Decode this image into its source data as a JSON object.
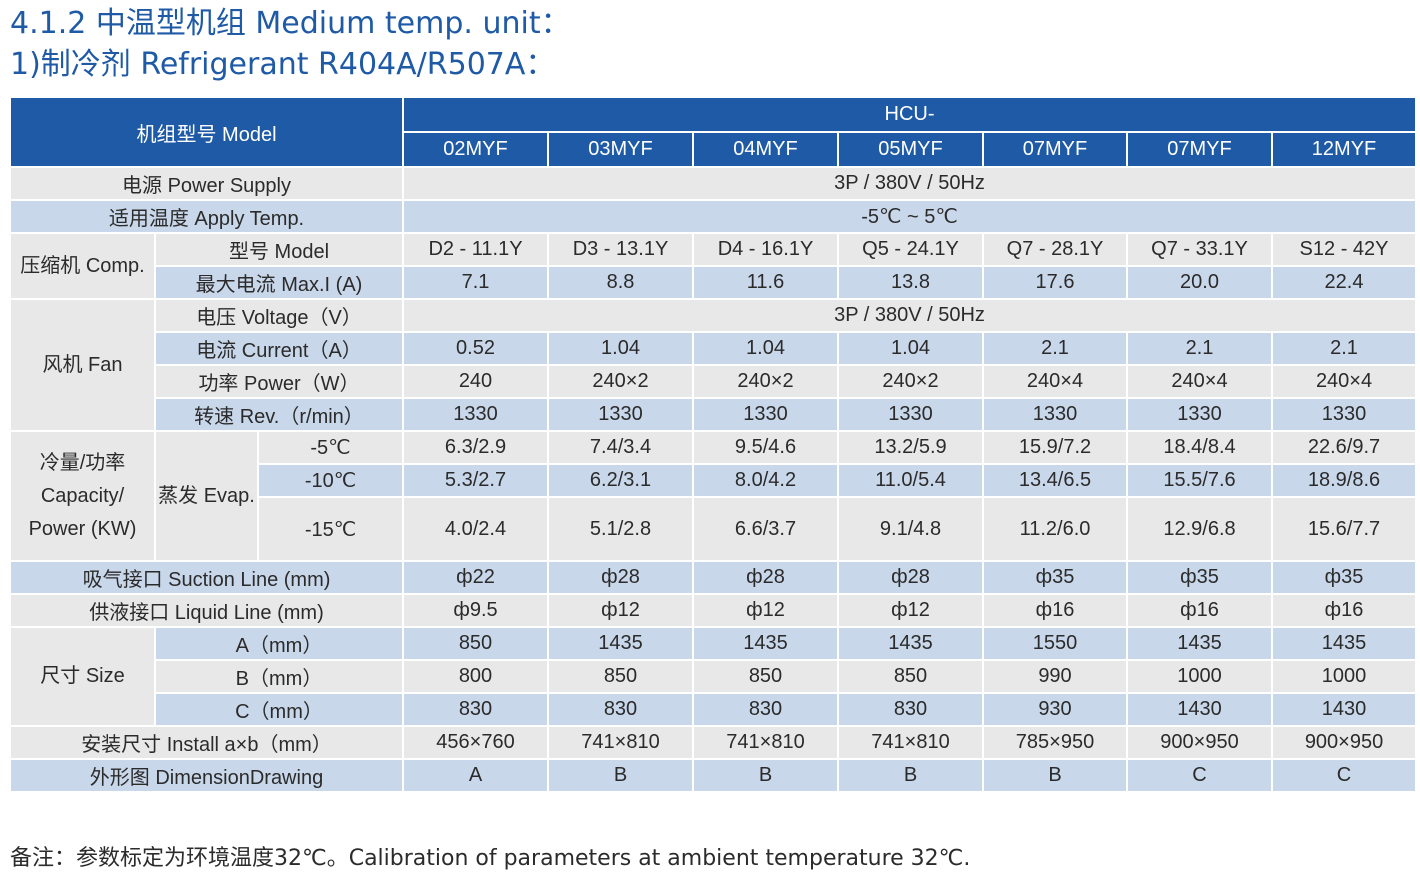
{
  "title_line1": "4.1.2 中温型机组 Medium temp. unit：",
  "title_line2": "1)制冷剂 Refrigerant  R404A/R507A：",
  "header": {
    "model_label": "机组型号 Model",
    "prefix": "HCU-",
    "models": [
      "02MYF",
      "03MYF",
      "04MYF",
      "05MYF",
      "07MYF",
      "07MYF",
      "12MYF"
    ]
  },
  "power_supply": {
    "label": "电源 Power Supply",
    "value": "3P / 380V / 50Hz"
  },
  "apply_temp": {
    "label": "适用温度 Apply Temp.",
    "value": "-5℃ ~ 5℃"
  },
  "comp": {
    "label": "压缩机 Comp.",
    "model_label": "型号 Model",
    "models": [
      "D2 - 11.1Y",
      "D3 - 13.1Y",
      "D4 - 16.1Y",
      "Q5 - 24.1Y",
      "Q7 - 28.1Y",
      "Q7 - 33.1Y",
      "S12 - 42Y"
    ],
    "maxi_label": "最大电流 Max.I (A)",
    "maxi": [
      "7.1",
      "8.8",
      "11.6",
      "13.8",
      "17.6",
      "20.0",
      "22.4"
    ]
  },
  "fan": {
    "label": "风机 Fan",
    "voltage_label": "电压 Voltage（V）",
    "voltage": "3P / 380V / 50Hz",
    "current_label": "电流 Current（A）",
    "current": [
      "0.52",
      "1.04",
      "1.04",
      "1.04",
      "2.1",
      "2.1",
      "2.1"
    ],
    "power_label": "功率 Power（W）",
    "power": [
      "240",
      "240×2",
      "240×2",
      "240×2",
      "240×4",
      "240×4",
      "240×4"
    ],
    "rev_label": "转速 Rev.（r/min）",
    "rev": [
      "1330",
      "1330",
      "1330",
      "1330",
      "1330",
      "1330",
      "1330"
    ]
  },
  "capacity": {
    "label": "冷量/功率 Capacity/ Power (KW)",
    "evap_label": "蒸发 Evap.",
    "rows": [
      {
        "temp": "-5℃",
        "values": [
          "6.3/2.9",
          "7.4/3.4",
          "9.5/4.6",
          "13.2/5.9",
          "15.9/7.2",
          "18.4/8.4",
          "22.6/9.7"
        ]
      },
      {
        "temp": "-10℃",
        "values": [
          "5.3/2.7",
          "6.2/3.1",
          "8.0/4.2",
          "11.0/5.4",
          "13.4/6.5",
          "15.5/7.6",
          "18.9/8.6"
        ]
      },
      {
        "temp": "-15℃",
        "values": [
          "4.0/2.4",
          "5.1/2.8",
          "6.6/3.7",
          "9.1/4.8",
          "11.2/6.0",
          "12.9/6.8",
          "15.6/7.7"
        ]
      }
    ]
  },
  "suction": {
    "label": "吸气接口 Suction Line (mm)",
    "values": [
      "ф22",
      "ф28",
      "ф28",
      "ф28",
      "ф35",
      "ф35",
      "ф35"
    ]
  },
  "liquid": {
    "label": "供液接口 Liquid Line (mm)",
    "values": [
      "ф9.5",
      "ф12",
      "ф12",
      "ф12",
      "ф16",
      "ф16",
      "ф16"
    ]
  },
  "size": {
    "label": "尺寸 Size",
    "a_label": "A（mm）",
    "a": [
      "850",
      "1435",
      "1435",
      "1435",
      "1550",
      "1435",
      "1435"
    ],
    "b_label": "B（mm）",
    "b": [
      "800",
      "850",
      "850",
      "850",
      "990",
      "1000",
      "1000"
    ],
    "c_label": "C（mm）",
    "c": [
      "830",
      "830",
      "830",
      "830",
      "930",
      "1430",
      "1430"
    ]
  },
  "install": {
    "label": "安装尺寸  Install   a×b（mm）",
    "values": [
      "456×760",
      "741×810",
      "741×810",
      "741×810",
      "785×950",
      "900×950",
      "900×950"
    ]
  },
  "drawing": {
    "label": "外形图 DimensionDrawing",
    "values": [
      "A",
      "B",
      "B",
      "B",
      "B",
      "C",
      "C"
    ]
  },
  "note": "备注：参数标定为环境温度32℃。Calibration of parameters at ambient temperature 32℃.",
  "colors": {
    "header_blue": "#1f5aa6",
    "row_gray": "#e8e8e8",
    "row_blue": "#c9d7ea",
    "title_blue": "#1f5aa6"
  }
}
